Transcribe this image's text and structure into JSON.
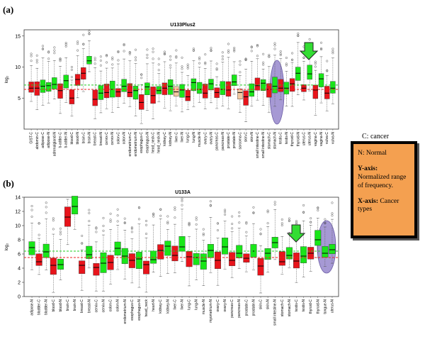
{
  "panel_labels": {
    "a": "(a)",
    "b": "(b)"
  },
  "legend": {
    "title": "C: cancer",
    "normal": "N: Normal",
    "y_axis_key": "Y-axis:",
    "y_axis_text": "Normalized range of frequency.",
    "x_axis_key": "X-axis:",
    "x_axis_text": "Cancer types",
    "background_color": "#f4a050"
  },
  "colors": {
    "cancer": "#e8141b",
    "normal": "#19e619",
    "highlight_ellipse": "#9d8ed0",
    "arrow": "#33dd33",
    "green_line": "#22cc22",
    "red_line": "#ee2222",
    "tan": "#f2c8a0"
  },
  "chart_data": [
    {
      "type": "box",
      "title": "U133Plus2",
      "ylabel": "log₂",
      "ylim": [
        0,
        16
      ],
      "yticks": [
        5,
        10,
        15
      ],
      "green_line_value": 7.1,
      "red_line_value": 6.4,
      "highlight": "thyroid-C / thyroid-N",
      "categories": [
        "GIST-C",
        "abdomin-C",
        "adipose-C",
        "adipose-N",
        "adrenalgland-N",
        "b-adder-C",
        "b-adder-N",
        "blood-C",
        "blood-N",
        "brain-C",
        "brain-N",
        "breast-C",
        "breast-N",
        "cervix-C",
        "cervix-N",
        "colon-C",
        "colon-N",
        "endometrium-C",
        "endometrium-N",
        "esophagus-C",
        "esophagus-N",
        "head_neck-C",
        "head_neck-N",
        "kidney-C",
        "kidney-N",
        "liver-C",
        "liver-N",
        "lung-C",
        "lung-N",
        "muscle-N",
        "ovary-C",
        "ovary-N",
        "pancreas-C",
        "pancreas-N",
        "prostate-C",
        "prostate-N",
        "sarcoma-C",
        "skin-C",
        "skin-N",
        "small intestine-C",
        "small intestine-N",
        "stomach-C",
        "stomach-N",
        "testis-C",
        "testis-N",
        "thyroid-C",
        "thyroid-N",
        "uterus-C",
        "uterus-N",
        "vagina-C",
        "vagina-N",
        "vulva-C",
        "vulva-N"
      ],
      "box_colors": [
        "red",
        "red",
        "green",
        "green",
        "green",
        "red",
        "green",
        "red",
        "red",
        "red",
        "green",
        "red",
        "green",
        "red",
        "green",
        "red",
        "green",
        "red",
        "green",
        "red",
        "green",
        "red",
        "green",
        "red",
        "green",
        "tan",
        "green",
        "red",
        "green",
        "green",
        "red",
        "green",
        "red",
        "green",
        "red",
        "green",
        "tan",
        "red",
        "green",
        "red",
        "green",
        "red",
        "green",
        "red",
        "green",
        "red",
        "green",
        "red",
        "green",
        "red",
        "green",
        "red",
        "green"
      ],
      "medians": [
        6.6,
        6.6,
        6.9,
        7.0,
        7.2,
        6.2,
        7.8,
        5.0,
        8.0,
        9.0,
        11.0,
        4.8,
        5.8,
        5.9,
        6.4,
        6.0,
        6.9,
        5.9,
        6.2,
        4.3,
        6.8,
        5.4,
        6.2,
        6.6,
        6.9,
        6.0,
        6.3,
        5.2,
        7.5,
        6.4,
        5.8,
        7.3,
        5.9,
        6.4,
        6.3,
        7.6,
        5.9,
        5.2,
        6.0,
        7.0,
        7.4,
        6.4,
        6.9,
        6.6,
        6.6,
        7.3,
        9.0,
        6.6,
        8.9,
        6.3,
        8.1,
        5.8,
        6.6
      ]
    },
    {
      "type": "box",
      "title": "U133A",
      "ylabel": "log₂",
      "ylim": [
        0,
        14
      ],
      "yticks": [
        0,
        2,
        4,
        6,
        8,
        10,
        12,
        14
      ],
      "green_line_value": 6.4,
      "red_line_value": 5.5,
      "highlight": "thyroid-C / thyroid-N",
      "categories": [
        "adipose-N",
        "bladder-C",
        "bladder-N",
        "blood-C",
        "blood-N",
        "brain-C",
        "brain-N",
        "breast-C",
        "breast-N",
        "cervix-C",
        "cervix-N",
        "colon-C",
        "colon-N",
        "endometrium-N",
        "esophagus-C",
        "esophagus-N",
        "head_neck",
        "heart-N",
        "kidney-C",
        "kidney-N",
        "liver-C",
        "liver-N",
        "lung-C",
        "lung-N",
        "muscle-N",
        "myometrium-N",
        "ovary-C",
        "ovary-N",
        "pancreas-C",
        "pancreas-N",
        "prostate-C",
        "prostate-N",
        "skin-C",
        "skin-N",
        "small intestine-N",
        "stomach-C",
        "stomach-N",
        "testis-C",
        "testis-N",
        "thyroid-C",
        "thyroid-N",
        "tongue-N",
        "uterus-N"
      ],
      "box_colors": [
        "green",
        "red",
        "green",
        "red",
        "green",
        "red",
        "green",
        "red",
        "green",
        "red",
        "green",
        "red",
        "green",
        "green",
        "red",
        "green",
        "red",
        "green",
        "red",
        "green",
        "red",
        "green",
        "red",
        "green",
        "green",
        "green",
        "red",
        "green",
        "red",
        "green",
        "red",
        "green",
        "red",
        "green",
        "green",
        "red",
        "green",
        "red",
        "green",
        "red",
        "green",
        "green",
        "green"
      ],
      "medians": [
        6.9,
        4.9,
        6.3,
        4.4,
        4.5,
        11.2,
        12.7,
        4.4,
        5.9,
        4.1,
        4.7,
        4.8,
        6.8,
        5.7,
        5.1,
        5.3,
        4.5,
        5.2,
        6.5,
        7.1,
        5.8,
        7.0,
        5.6,
        5.5,
        5.0,
        6.5,
        5.1,
        7.0,
        5.1,
        6.1,
        5.4,
        6.4,
        4.3,
        6.1,
        7.6,
        4.9,
        5.8,
        5.0,
        5.7,
        6.1,
        8.0,
        6.1,
        6.6
      ]
    }
  ]
}
